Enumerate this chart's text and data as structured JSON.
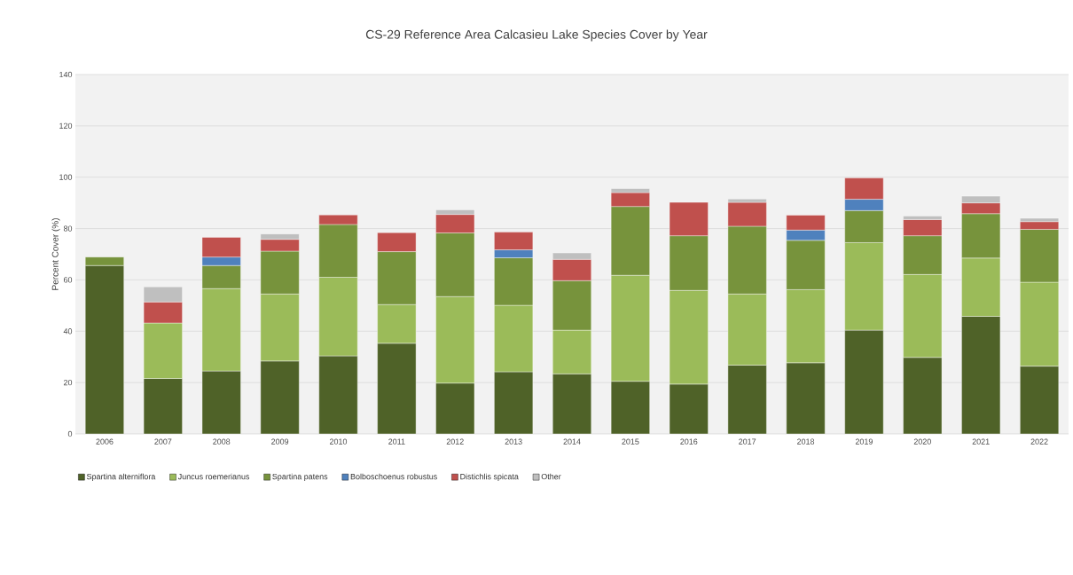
{
  "chart_data": {
    "type": "bar",
    "stacked": true,
    "title": "CS-29 Reference Area Calcasieu Lake Species Cover by Year",
    "ylabel": "Percent Cover (%)",
    "categories": [
      "2006",
      "2007",
      "2008",
      "2009",
      "2010",
      "2011",
      "2012",
      "2013",
      "2014",
      "2015",
      "2016",
      "2017",
      "2018",
      "2019",
      "2020",
      "2021",
      "2022"
    ],
    "series": [
      {
        "name": "Spartina alterniflora",
        "color": "#4f6228",
        "values": [
          65.6,
          21.6,
          24.5,
          28.4,
          30.4,
          35.3,
          19.8,
          24.2,
          23.4,
          20.5,
          19.4,
          26.8,
          27.7,
          40.4,
          29.8,
          45.8,
          26.4
        ]
      },
      {
        "name": "Juncus roemerianus",
        "color": "#9bbb59",
        "values": [
          null,
          21.6,
          32.1,
          26.1,
          30.6,
          15.1,
          33.7,
          25.9,
          17.0,
          41.3,
          36.5,
          27.7,
          28.5,
          34.1,
          32.3,
          22.7,
          32.7
        ]
      },
      {
        "name": "Spartina patens",
        "color": "#77933c",
        "values": [
          3.3,
          null,
          9.0,
          16.7,
          20.6,
          20.6,
          24.8,
          18.5,
          19.3,
          26.8,
          21.3,
          26.4,
          19.2,
          12.5,
          15.1,
          17.3,
          20.6
        ]
      },
      {
        "name": "Bolboschoenus robustus",
        "color": "#4f81bd",
        "values": [
          null,
          null,
          3.3,
          null,
          null,
          null,
          null,
          3.1,
          null,
          null,
          null,
          null,
          4.0,
          4.4,
          null,
          null,
          null
        ]
      },
      {
        "name": "Distichlis spicata",
        "color": "#c0504d",
        "values": [
          null,
          8.2,
          7.7,
          4.6,
          3.7,
          7.4,
          7.2,
          6.9,
          8.3,
          5.4,
          13.0,
          9.3,
          5.8,
          8.3,
          6.3,
          4.2,
          3.0
        ]
      },
      {
        "name": "Other",
        "color": "#bfbfbf",
        "values": [
          null,
          5.9,
          null,
          2.1,
          null,
          null,
          1.8,
          null,
          2.5,
          1.6,
          null,
          1.3,
          null,
          null,
          1.4,
          2.6,
          1.3
        ]
      }
    ],
    "ylim": [
      0,
      140
    ],
    "yticks": [
      0,
      20,
      40,
      60,
      80,
      100,
      120,
      140
    ],
    "grid": "y",
    "legend": "bottom"
  }
}
